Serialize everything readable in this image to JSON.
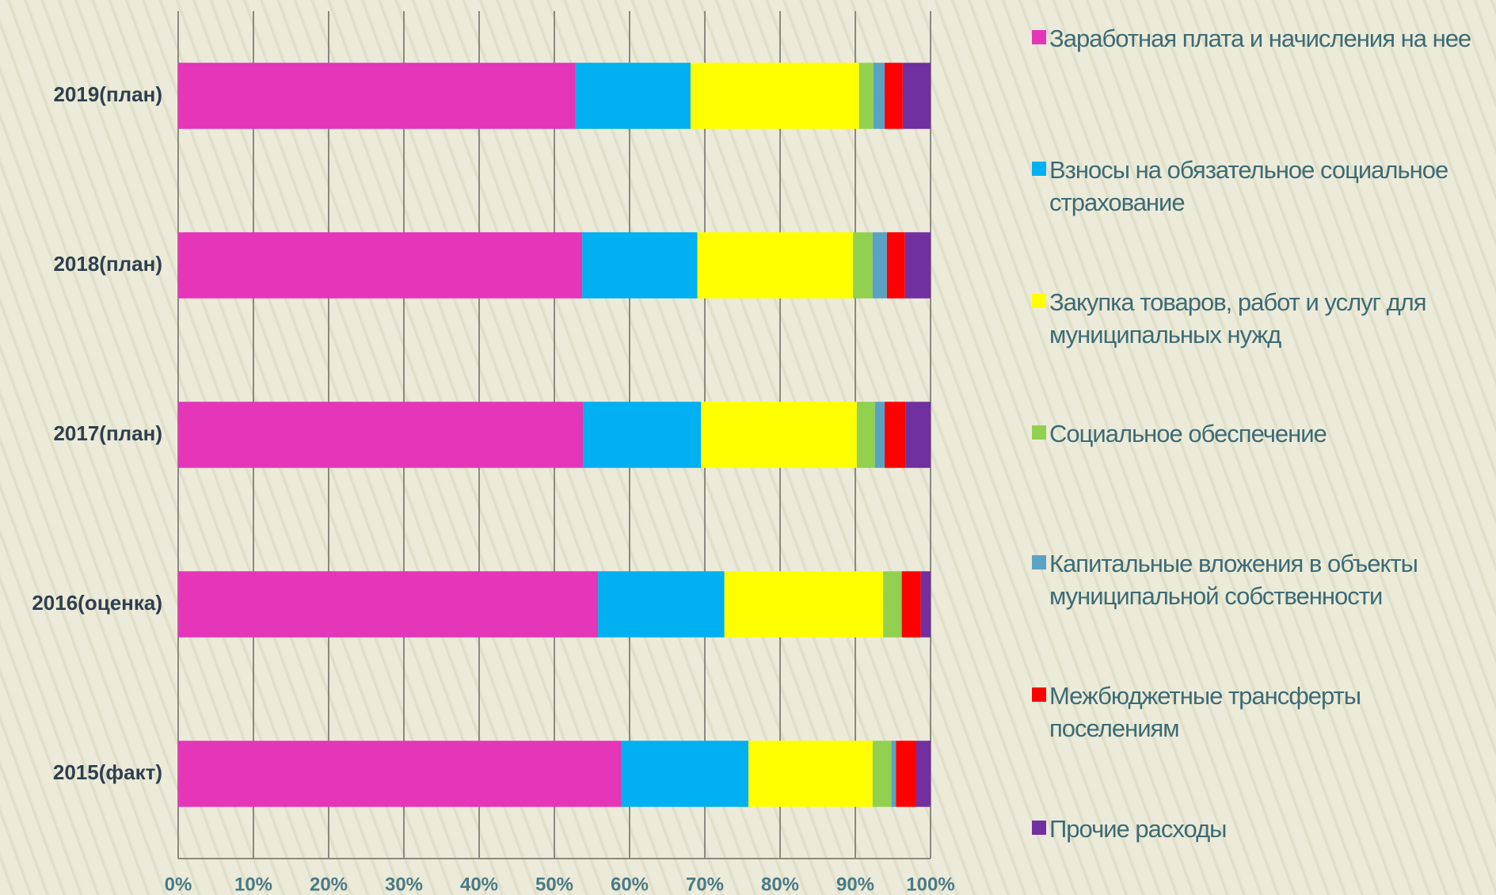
{
  "chart_data": {
    "type": "bar",
    "orientation": "horizontal",
    "stacked": true,
    "categories": [
      "2015(факт)",
      "2016(оценка)",
      "2017(план)",
      "2018(план)",
      "2019(план)"
    ],
    "series": [
      {
        "name": "Заработная плата и начисления на нее",
        "color": "#e535b8",
        "values": [
          58.9,
          55.8,
          53.8,
          53.7,
          52.8
        ]
      },
      {
        "name": "Взносы на обязательное социальное страхование",
        "color": "#00b0f0",
        "values": [
          16.9,
          16.8,
          15.7,
          15.3,
          15.3
        ]
      },
      {
        "name": "Закупка товаров, работ и услуг для муниципальных нужд",
        "color": "#ffff00",
        "values": [
          16.5,
          21.1,
          20.7,
          20.7,
          22.4
        ]
      },
      {
        "name": "Социальное обеспечение",
        "color": "#92d050",
        "values": [
          2.5,
          2.4,
          2.4,
          2.6,
          1.9
        ]
      },
      {
        "name": "Капитальные вложения в объекты муниципальной собственности",
        "color": "#5ba3c4",
        "values": [
          0.6,
          0.1,
          1.3,
          1.9,
          1.5
        ]
      },
      {
        "name": "Межбюджетные трансферты поселениям",
        "color": "#ff0000",
        "values": [
          2.7,
          2.5,
          2.8,
          2.4,
          2.4
        ]
      },
      {
        "name": "Прочие расходы",
        "color": "#7030a0",
        "values": [
          1.9,
          1.3,
          3.3,
          3.4,
          3.7
        ]
      }
    ],
    "xlim": [
      0,
      100
    ],
    "xticks": [
      {
        "value": 0,
        "label": "0%"
      },
      {
        "value": 10,
        "label": "10%"
      },
      {
        "value": 20,
        "label": "20%"
      },
      {
        "value": 30,
        "label": "30%"
      },
      {
        "value": 40,
        "label": "40%"
      },
      {
        "value": 50,
        "label": "50%"
      },
      {
        "value": 60,
        "label": "60%"
      },
      {
        "value": 70,
        "label": "70%"
      },
      {
        "value": 80,
        "label": "80%"
      },
      {
        "value": 90,
        "label": "90%"
      },
      {
        "value": 100,
        "label": "100%"
      }
    ],
    "grid": true,
    "legend": "right"
  }
}
